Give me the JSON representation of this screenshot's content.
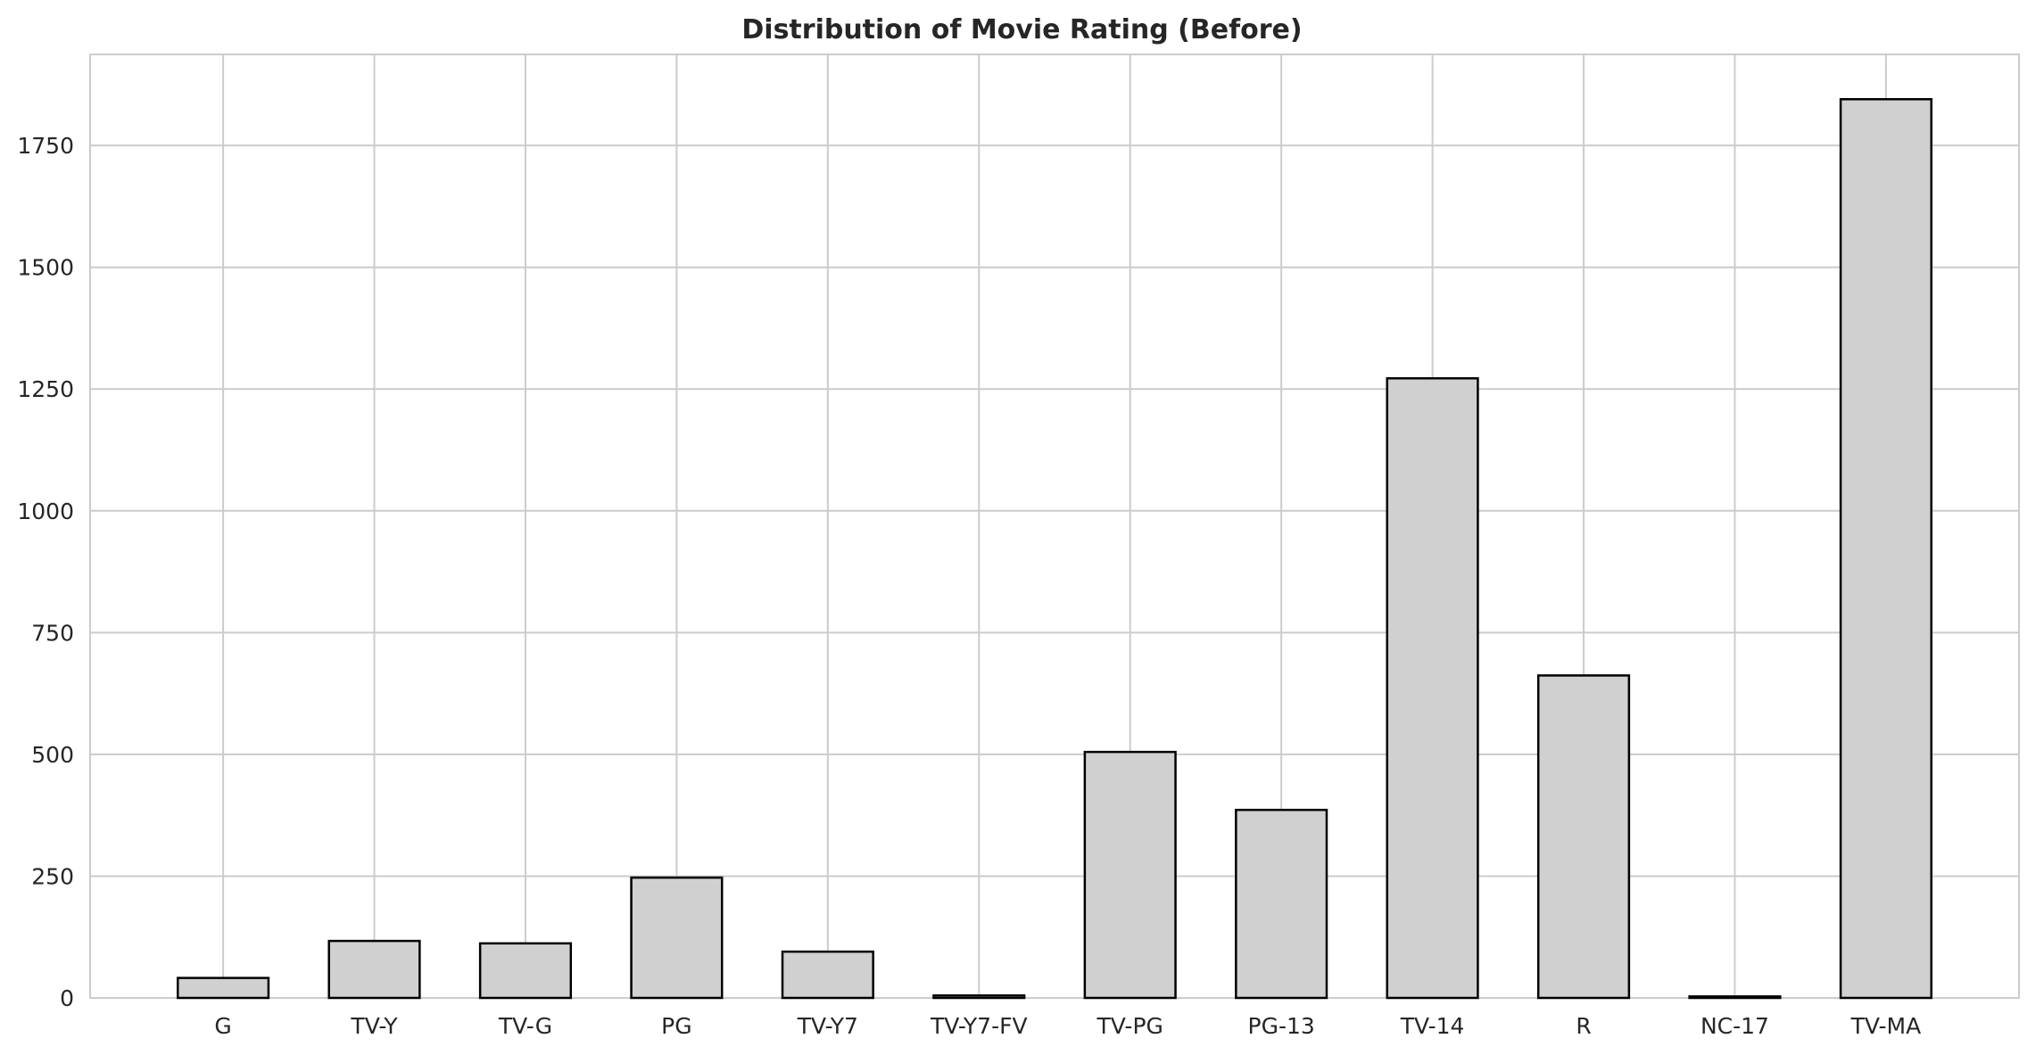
{
  "chart_data": {
    "type": "bar",
    "title": "Distribution of Movie Rating (Before)",
    "xlabel": "",
    "ylabel": "",
    "categories": [
      "G",
      "TV-Y",
      "TV-G",
      "PG",
      "TV-Y7",
      "TV-Y7-FV",
      "TV-PG",
      "PG-13",
      "TV-14",
      "R",
      "NC-17",
      "TV-MA"
    ],
    "values": [
      41,
      117,
      112,
      247,
      95,
      5,
      505,
      386,
      1272,
      662,
      3,
      1845
    ],
    "ylim": [
      0,
      1937
    ],
    "yticks": [
      0,
      250,
      500,
      750,
      1000,
      1250,
      1500,
      1750
    ],
    "grid": true,
    "legend": "none",
    "colors": {
      "bar_fill": "#d0d0d0",
      "bar_edge": "#000000",
      "grid": "#cccccc",
      "text": "#262626"
    }
  }
}
